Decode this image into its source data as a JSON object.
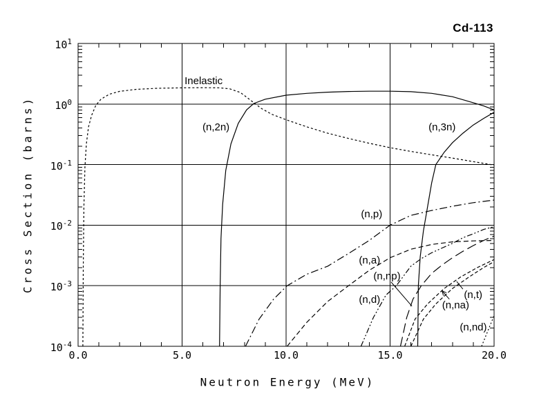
{
  "chart_data": {
    "type": "line",
    "title": "Cd-113",
    "xlabel": "Neutron Energy (MeV)",
    "ylabel": "Cross Section (barns)",
    "x_range": [
      0,
      20
    ],
    "y_log_range": [
      -4,
      1
    ],
    "x_minor_tick_step": 1,
    "grid": {
      "x_values": [
        5,
        10,
        15
      ],
      "y_decades_log10": [
        0,
        -1,
        -2,
        -3
      ]
    },
    "x_ticks": [
      {
        "value": 0,
        "label": "0.0"
      },
      {
        "value": 5,
        "label": "5.0"
      },
      {
        "value": 10,
        "label": "10.0"
      },
      {
        "value": 15,
        "label": "15.0"
      },
      {
        "value": 20,
        "label": "20.0"
      }
    ],
    "y_ticks": [
      {
        "log": 1,
        "base": "10",
        "exp": "1"
      },
      {
        "log": 0,
        "base": "10",
        "exp": "0"
      },
      {
        "log": -1,
        "base": "10",
        "exp": "-1"
      },
      {
        "log": -2,
        "base": "10",
        "exp": "-2"
      },
      {
        "log": -3,
        "base": "10",
        "exp": "-3"
      },
      {
        "log": -4,
        "base": "10",
        "exp": "-4"
      }
    ],
    "series": [
      {
        "key": "inelastic",
        "label": "Inelastic",
        "line_style": "fine-dashed",
        "label_pos": [
          5.12,
          2.9
        ],
        "points": [
          [
            0.23,
            0.0001
          ],
          [
            0.25,
            0.002
          ],
          [
            0.28,
            0.02
          ],
          [
            0.33,
            0.09
          ],
          [
            0.4,
            0.22
          ],
          [
            0.5,
            0.42
          ],
          [
            0.65,
            0.65
          ],
          [
            0.85,
            0.95
          ],
          [
            1.1,
            1.2
          ],
          [
            1.5,
            1.45
          ],
          [
            2,
            1.62
          ],
          [
            2.8,
            1.75
          ],
          [
            3.8,
            1.82
          ],
          [
            5,
            1.85
          ],
          [
            6,
            1.86
          ],
          [
            6.8,
            1.85
          ],
          [
            7.3,
            1.78
          ],
          [
            7.8,
            1.55
          ],
          [
            8.1,
            1.3
          ],
          [
            8.45,
            1.05
          ],
          [
            8.8,
            0.85
          ],
          [
            9.3,
            0.68
          ],
          [
            10,
            0.55
          ],
          [
            11,
            0.42
          ],
          [
            12,
            0.33
          ],
          [
            13,
            0.27
          ],
          [
            14,
            0.225
          ],
          [
            15,
            0.19
          ],
          [
            16,
            0.165
          ],
          [
            17,
            0.145
          ],
          [
            18,
            0.128
          ],
          [
            19,
            0.112
          ],
          [
            20,
            0.098
          ]
        ]
      },
      {
        "key": "n2n",
        "label": "(n,2n)",
        "line_style": "solid",
        "label_pos": [
          5.98,
          0.5
        ],
        "points": [
          [
            6.8,
            0.0001
          ],
          [
            6.83,
            0.001
          ],
          [
            6.87,
            0.006
          ],
          [
            6.95,
            0.022
          ],
          [
            7.1,
            0.08
          ],
          [
            7.35,
            0.22
          ],
          [
            7.7,
            0.48
          ],
          [
            8.1,
            0.8
          ],
          [
            8.45,
            1.02
          ],
          [
            9,
            1.2
          ],
          [
            10,
            1.4
          ],
          [
            11,
            1.5
          ],
          [
            12,
            1.57
          ],
          [
            13,
            1.61
          ],
          [
            14,
            1.63
          ],
          [
            15,
            1.63
          ],
          [
            16,
            1.6
          ],
          [
            17,
            1.5
          ],
          [
            18,
            1.32
          ],
          [
            19,
            1.05
          ],
          [
            19.5,
            0.93
          ],
          [
            20,
            0.8
          ]
        ]
      },
      {
        "key": "n3n",
        "label": "(n,3n)",
        "line_style": "solid",
        "label_pos": [
          16.85,
          0.5
        ],
        "points": [
          [
            16.33,
            0.0001
          ],
          [
            16.36,
            0.001
          ],
          [
            16.45,
            0.003
          ],
          [
            16.6,
            0.008
          ],
          [
            16.8,
            0.02
          ],
          [
            17.0,
            0.05
          ],
          [
            17.2,
            0.1
          ],
          [
            17.6,
            0.16
          ],
          [
            18,
            0.23
          ],
          [
            18.5,
            0.33
          ],
          [
            19,
            0.45
          ],
          [
            19.5,
            0.58
          ],
          [
            20,
            0.73
          ]
        ]
      },
      {
        "key": "np",
        "label": "(n,p)",
        "line_style": "dash-dot",
        "label_pos": [
          13.6,
          0.0185
        ],
        "points": [
          [
            8.05,
            0.0001
          ],
          [
            8.7,
            0.00028
          ],
          [
            9.4,
            0.0006
          ],
          [
            10.05,
            0.001
          ],
          [
            11,
            0.00155
          ],
          [
            12,
            0.0021
          ],
          [
            13,
            0.0034
          ],
          [
            14,
            0.0056
          ],
          [
            15,
            0.01
          ],
          [
            16,
            0.0145
          ],
          [
            17,
            0.0175
          ],
          [
            18,
            0.0205
          ],
          [
            19,
            0.0235
          ],
          [
            20,
            0.026
          ]
        ]
      },
      {
        "key": "na",
        "label": "(n,a)",
        "line_style": "dashed",
        "label_pos": [
          13.5,
          0.0032
        ],
        "points": [
          [
            10.05,
            0.0001
          ],
          [
            11,
            0.00025
          ],
          [
            12,
            0.00055
          ],
          [
            13,
            0.001
          ],
          [
            14,
            0.0018
          ],
          [
            15,
            0.0029
          ],
          [
            16,
            0.004
          ],
          [
            17,
            0.0048
          ],
          [
            18,
            0.0053
          ],
          [
            19,
            0.0055
          ],
          [
            20,
            0.0056
          ]
        ]
      },
      {
        "key": "nnp",
        "label": "(n,np)",
        "line_style": "long-dash",
        "label_pos": [
          14.2,
          0.00175
        ],
        "points": [
          [
            15.5,
            0.0001
          ],
          [
            15.8,
            0.0003
          ],
          [
            16.1,
            0.0006
          ],
          [
            16.5,
            0.001
          ],
          [
            17,
            0.0016
          ],
          [
            17.5,
            0.0022
          ],
          [
            18,
            0.0029
          ],
          [
            18.5,
            0.0037
          ],
          [
            19,
            0.0046
          ],
          [
            19.5,
            0.0056
          ],
          [
            20,
            0.0066
          ]
        ]
      },
      {
        "key": "nd",
        "label": "(n,d)",
        "line_style": "dash-dot-dot",
        "label_pos": [
          13.5,
          0.00072
        ],
        "points": [
          [
            13.6,
            0.0001
          ],
          [
            14.2,
            0.0003
          ],
          [
            14.8,
            0.0007
          ],
          [
            15.3,
            0.001
          ],
          [
            16,
            0.0021
          ],
          [
            16.5,
            0.0028
          ],
          [
            17,
            0.0035
          ],
          [
            17.5,
            0.0042
          ],
          [
            18,
            0.005
          ],
          [
            18.5,
            0.0062
          ],
          [
            19,
            0.0072
          ],
          [
            19.5,
            0.0085
          ],
          [
            20,
            0.0095
          ]
        ]
      },
      {
        "key": "nt",
        "label": "(n,t)",
        "line_style": "short-dash",
        "label_pos": [
          18.55,
          0.00086
        ],
        "points": [
          [
            15.7,
            0.0001
          ],
          [
            16.2,
            0.00028
          ],
          [
            16.8,
            0.0005
          ],
          [
            17.6,
            0.0009
          ],
          [
            18.4,
            0.0014
          ],
          [
            19.2,
            0.002
          ],
          [
            20,
            0.0027
          ]
        ]
      },
      {
        "key": "nna",
        "label": "(n,na)",
        "line_style": "short-dash",
        "label_pos": [
          17.5,
          0.00058
        ],
        "points": [
          [
            16.0,
            0.0001
          ],
          [
            16.6,
            0.00028
          ],
          [
            17.2,
            0.0005
          ],
          [
            18,
            0.0009
          ],
          [
            18.8,
            0.0014
          ],
          [
            19.5,
            0.002
          ],
          [
            20,
            0.0025
          ]
        ]
      },
      {
        "key": "nnd",
        "label": "(n,nd)",
        "line_style": "dotted",
        "label_pos": [
          18.35,
          0.00025
        ],
        "points": [
          [
            19.4,
            0.0001
          ],
          [
            19.7,
            0.00018
          ],
          [
            20,
            0.00032
          ]
        ]
      }
    ],
    "pointer_lines": [
      {
        "for": "nnp",
        "x1": 15.05,
        "y1": 0.00115,
        "x2": 16.05,
        "y2": 0.00046,
        "arrow": false
      },
      {
        "for": "nt",
        "x1": 18.5,
        "y1": 0.00088,
        "x2": 18.2,
        "y2": 0.00118,
        "arrow": false
      },
      {
        "for": "nna",
        "x1": 17.85,
        "y1": 0.0006,
        "x2": 17.5,
        "y2": 0.00082,
        "arrow": true
      }
    ]
  }
}
